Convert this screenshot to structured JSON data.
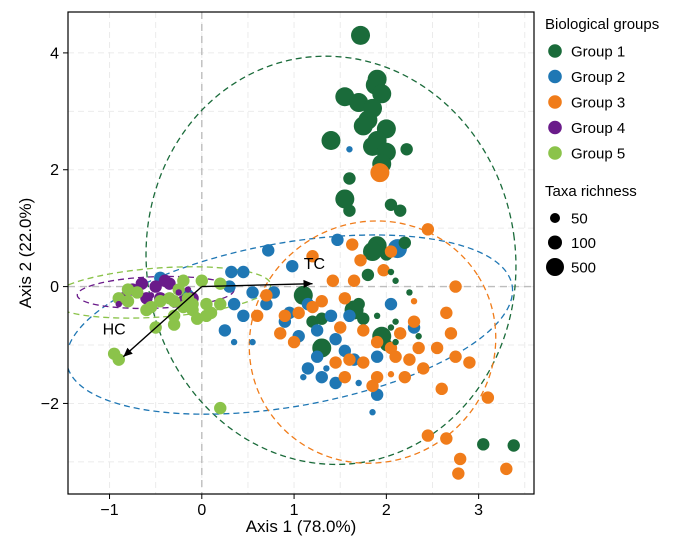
{
  "chart_data": {
    "type": "scatter",
    "xlabel": "Axis 1 (78.0%)",
    "ylabel": "Axis 2 (22.0%)",
    "xlim": [
      -1.45,
      3.6
    ],
    "ylim": [
      -3.55,
      4.7
    ],
    "x_ticks": [
      -1,
      0,
      1,
      2,
      3
    ],
    "y_ticks": [
      -2,
      0,
      2,
      4
    ],
    "x_tick_labels": [
      "−1",
      "0",
      "1",
      "2",
      "3"
    ],
    "y_tick_labels": [
      "−2",
      "0",
      "2",
      "4"
    ],
    "grid": true,
    "reference_lines": {
      "x": 0,
      "y": 0
    },
    "legend_placement": "right",
    "legend": {
      "color_title": "Biological groups",
      "size_title": "Taxa richness",
      "size_entries": [
        {
          "label": "50",
          "richness": 50
        },
        {
          "label": "100",
          "richness": 100
        },
        {
          "label": "500",
          "richness": 500
        }
      ]
    },
    "series": [
      {
        "name": "Group 1",
        "color": "#1a6b3a",
        "ellipse": {
          "cx": 1.4,
          "cy": 0.45,
          "rx": 2.0,
          "ry": 3.5,
          "angle": -8
        },
        "points": [
          [
            1.72,
            4.3,
            500
          ],
          [
            1.9,
            3.55,
            500
          ],
          [
            1.88,
            3.45,
            500
          ],
          [
            1.55,
            3.25,
            500
          ],
          [
            1.95,
            3.3,
            500
          ],
          [
            1.7,
            3.15,
            500
          ],
          [
            1.85,
            3.05,
            500
          ],
          [
            1.8,
            2.85,
            500
          ],
          [
            1.75,
            2.75,
            500
          ],
          [
            2.0,
            2.7,
            500
          ],
          [
            1.4,
            2.5,
            500
          ],
          [
            1.9,
            2.5,
            500
          ],
          [
            1.85,
            2.4,
            500
          ],
          [
            2.0,
            2.3,
            500
          ],
          [
            1.95,
            2.1,
            500
          ],
          [
            2.22,
            2.35,
            100
          ],
          [
            1.6,
            1.85,
            100
          ],
          [
            1.55,
            1.5,
            500
          ],
          [
            2.05,
            1.4,
            100
          ],
          [
            2.15,
            1.3,
            100
          ],
          [
            1.6,
            1.3,
            100
          ],
          [
            1.9,
            0.7,
            500
          ],
          [
            1.85,
            0.6,
            500
          ],
          [
            2.0,
            0.55,
            100
          ],
          [
            2.2,
            0.75,
            100
          ],
          [
            2.05,
            0.25,
            50
          ],
          [
            1.8,
            0.2,
            100
          ],
          [
            2.1,
            0.1,
            50
          ],
          [
            2.25,
            -0.1,
            50
          ],
          [
            1.1,
            -0.15,
            500
          ],
          [
            1.7,
            -0.3,
            100
          ],
          [
            1.65,
            -0.4,
            500
          ],
          [
            1.75,
            -0.55,
            100
          ],
          [
            1.3,
            -0.55,
            100
          ],
          [
            1.2,
            -0.6,
            100
          ],
          [
            2.1,
            -0.6,
            50
          ],
          [
            1.95,
            -0.85,
            500
          ],
          [
            2.0,
            -1.0,
            100
          ],
          [
            1.3,
            -1.05,
            500
          ],
          [
            2.1,
            -0.95,
            50
          ],
          [
            2.05,
            -0.7,
            50
          ],
          [
            1.9,
            -0.5,
            50
          ],
          [
            3.05,
            -2.7,
            100
          ],
          [
            3.38,
            -2.72,
            100
          ],
          [
            2.35,
            -0.85,
            50
          ]
        ]
      },
      {
        "name": "Group 2",
        "color": "#1f77b4",
        "ellipse": {
          "cx": 0.95,
          "cy": -0.65,
          "rx": 2.45,
          "ry": 1.4,
          "angle": -10
        },
        "points": [
          [
            1.6,
            2.35,
            50
          ],
          [
            1.47,
            0.8,
            100
          ],
          [
            2.12,
            0.65,
            500
          ],
          [
            0.72,
            0.62,
            100
          ],
          [
            0.98,
            0.35,
            100
          ],
          [
            0.32,
            0.25,
            100
          ],
          [
            0.45,
            0.25,
            100
          ],
          [
            0.3,
            0.0,
            100
          ],
          [
            0.55,
            -0.1,
            100
          ],
          [
            0.35,
            -0.3,
            100
          ],
          [
            0.45,
            -0.5,
            100
          ],
          [
            0.25,
            -0.75,
            100
          ],
          [
            0.35,
            -0.95,
            50
          ],
          [
            0.9,
            -0.6,
            100
          ],
          [
            1.05,
            -0.85,
            100
          ],
          [
            1.25,
            -0.75,
            100
          ],
          [
            1.4,
            -0.5,
            100
          ],
          [
            1.6,
            -0.5,
            100
          ],
          [
            0.7,
            -0.3,
            100
          ],
          [
            1.15,
            -0.3,
            100
          ],
          [
            0.78,
            -0.1,
            100
          ],
          [
            1.45,
            -0.9,
            100
          ],
          [
            1.65,
            -1.25,
            100
          ],
          [
            1.55,
            -1.1,
            100
          ],
          [
            1.35,
            -1.4,
            50
          ],
          [
            1.3,
            -1.55,
            100
          ],
          [
            1.45,
            -1.65,
            100
          ],
          [
            1.7,
            -1.65,
            50
          ],
          [
            1.9,
            -1.85,
            100
          ],
          [
            1.15,
            -1.4,
            100
          ],
          [
            1.25,
            -1.2,
            100
          ],
          [
            2.3,
            -0.7,
            100
          ],
          [
            -0.45,
            0.15,
            100
          ],
          [
            -0.15,
            -0.15,
            100
          ],
          [
            0.55,
            -0.95,
            50
          ],
          [
            1.1,
            -1.55,
            50
          ],
          [
            1.85,
            -2.15,
            50
          ],
          [
            1.9,
            -1.2,
            100
          ],
          [
            2.05,
            -0.3,
            100
          ],
          [
            0.95,
            -0.45,
            100
          ]
        ]
      },
      {
        "name": "Group 3",
        "color": "#f07c1a",
        "ellipse": {
          "cx": 1.85,
          "cy": -0.95,
          "rx": 1.35,
          "ry": 2.05,
          "angle": -32
        },
        "points": [
          [
            1.93,
            1.95,
            500
          ],
          [
            2.45,
            0.98,
            100
          ],
          [
            1.63,
            0.72,
            100
          ],
          [
            2.05,
            0.6,
            100
          ],
          [
            1.2,
            0.52,
            100
          ],
          [
            1.72,
            0.45,
            100
          ],
          [
            1.97,
            0.28,
            100
          ],
          [
            1.65,
            0.1,
            100
          ],
          [
            1.42,
            0.1,
            100
          ],
          [
            1.3,
            -0.25,
            100
          ],
          [
            1.55,
            -0.2,
            100
          ],
          [
            1.2,
            -0.35,
            100
          ],
          [
            1.05,
            -0.45,
            100
          ],
          [
            0.9,
            -0.5,
            100
          ],
          [
            0.85,
            -0.8,
            100
          ],
          [
            1.0,
            -0.95,
            100
          ],
          [
            1.5,
            -0.7,
            100
          ],
          [
            1.75,
            -0.75,
            100
          ],
          [
            1.9,
            -0.95,
            100
          ],
          [
            2.05,
            -1.05,
            100
          ],
          [
            2.1,
            -1.2,
            100
          ],
          [
            2.25,
            -1.25,
            100
          ],
          [
            2.35,
            -1.05,
            100
          ],
          [
            1.75,
            -1.3,
            100
          ],
          [
            1.6,
            -1.25,
            100
          ],
          [
            1.45,
            -1.3,
            100
          ],
          [
            1.55,
            -1.55,
            100
          ],
          [
            1.9,
            -1.55,
            100
          ],
          [
            2.2,
            -1.55,
            100
          ],
          [
            2.05,
            -1.5,
            50
          ],
          [
            1.85,
            -1.7,
            100
          ],
          [
            2.4,
            -1.4,
            100
          ],
          [
            2.75,
            -1.2,
            100
          ],
          [
            2.7,
            -0.8,
            100
          ],
          [
            2.55,
            -1.05,
            100
          ],
          [
            2.75,
            0.0,
            100
          ],
          [
            2.65,
            -0.45,
            100
          ],
          [
            2.3,
            -0.25,
            50
          ],
          [
            2.9,
            -1.3,
            100
          ],
          [
            2.6,
            -1.75,
            100
          ],
          [
            3.1,
            -1.9,
            100
          ],
          [
            2.45,
            -2.55,
            100
          ],
          [
            2.65,
            -2.6,
            100
          ],
          [
            2.8,
            -2.95,
            100
          ],
          [
            2.78,
            -3.2,
            100
          ],
          [
            3.3,
            -3.12,
            100
          ],
          [
            0.7,
            -0.15,
            100
          ],
          [
            0.6,
            -0.5,
            100
          ],
          [
            2.3,
            -0.6,
            100
          ],
          [
            2.15,
            -0.8,
            100
          ]
        ]
      },
      {
        "name": "Group 4",
        "color": "#6a1b8a",
        "ellipse": {
          "cx": -0.5,
          "cy": -0.1,
          "rx": 0.85,
          "ry": 0.27,
          "angle": -2
        },
        "points": [
          [
            -0.75,
            -0.05,
            100
          ],
          [
            -0.65,
            0.05,
            100
          ],
          [
            -0.6,
            -0.2,
            100
          ],
          [
            -0.55,
            -0.15,
            50
          ],
          [
            -0.5,
            0.0,
            100
          ],
          [
            -0.45,
            -0.2,
            100
          ],
          [
            -0.35,
            0.05,
            100
          ],
          [
            -0.25,
            -0.1,
            50
          ],
          [
            -0.2,
            -0.25,
            100
          ],
          [
            -0.1,
            -0.2,
            100
          ],
          [
            -0.85,
            -0.2,
            100
          ],
          [
            -0.9,
            -0.3,
            50
          ],
          [
            -0.4,
            0.1,
            100
          ],
          [
            -0.15,
            -0.05,
            50
          ]
        ]
      },
      {
        "name": "Group 5",
        "color": "#8bc34a",
        "ellipse": {
          "cx": -0.45,
          "cy": -0.1,
          "rx": 1.2,
          "ry": 0.42,
          "angle": -4
        },
        "points": [
          [
            -0.95,
            -1.15,
            100
          ],
          [
            -0.9,
            -1.25,
            100
          ],
          [
            -0.9,
            -0.2,
            100
          ],
          [
            -0.8,
            -0.25,
            100
          ],
          [
            -0.7,
            -0.1,
            100
          ],
          [
            -0.55,
            -0.35,
            100
          ],
          [
            -0.45,
            -0.25,
            100
          ],
          [
            -0.35,
            -0.2,
            100
          ],
          [
            -0.25,
            -0.05,
            100
          ],
          [
            -0.2,
            -0.35,
            100
          ],
          [
            -0.1,
            -0.4,
            100
          ],
          [
            -0.05,
            -0.55,
            100
          ],
          [
            0.05,
            -0.5,
            100
          ],
          [
            0.1,
            -0.45,
            100
          ],
          [
            -0.3,
            -0.5,
            100
          ],
          [
            -0.3,
            -0.65,
            100
          ],
          [
            -0.5,
            -0.7,
            100
          ],
          [
            -0.6,
            -0.4,
            100
          ],
          [
            -0.2,
            0.1,
            100
          ],
          [
            0.0,
            0.1,
            100
          ],
          [
            0.05,
            -0.3,
            100
          ],
          [
            0.2,
            -0.3,
            100
          ],
          [
            0.2,
            0.05,
            100
          ],
          [
            0.2,
            -2.08,
            100
          ],
          [
            -0.15,
            -0.2,
            100
          ],
          [
            -0.1,
            -0.3,
            100
          ],
          [
            -0.8,
            -0.05,
            100
          ],
          [
            -0.3,
            -0.25,
            100
          ]
        ]
      }
    ],
    "annotations": [
      {
        "label": "TC",
        "x": 1.2,
        "y": 0.05,
        "label_x": 1.22,
        "label_y": 0.3
      },
      {
        "label": "HC",
        "x": -0.85,
        "y": -1.2,
        "label_x": -0.95,
        "label_y": -0.82
      }
    ]
  }
}
